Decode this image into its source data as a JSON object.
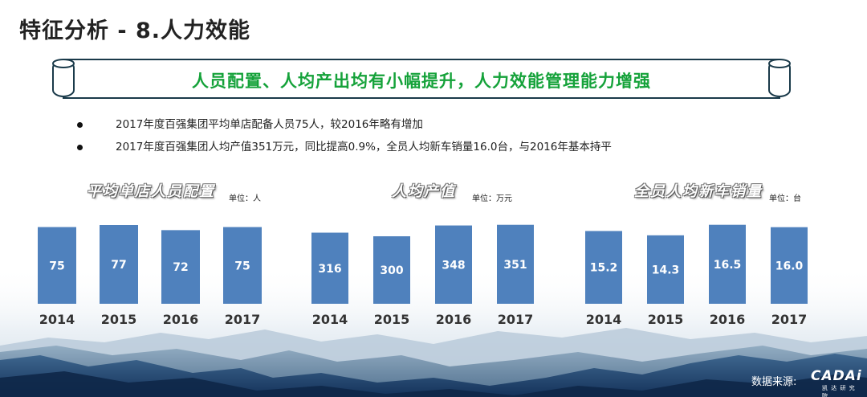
{
  "page": {
    "title": "特征分析 - 8.人力效能",
    "banner": "人员配置、人均产出均有小幅提升，人力效能管理能力增强",
    "bullets": [
      "2017年度百强集团平均单店配备人员75人，较2016年略有增加",
      "2017年度百强集团人均产值351万元，同比提高0.9%，全员人均新车销量16.0台，与2016年基本持平"
    ],
    "source_label": "数据来源:",
    "logo": {
      "word": "CADAi",
      "sub": "凯 达 研 究 院"
    }
  },
  "colors": {
    "bar": "#4f81bd",
    "banner_text": "#15a23a",
    "banner_border": "#1a3a4a"
  },
  "chart_data": [
    {
      "type": "bar",
      "title": "平均单店人员配置",
      "unit": "单位：人",
      "categories": [
        "2014",
        "2015",
        "2016",
        "2017"
      ],
      "values": [
        75,
        77,
        72,
        75
      ],
      "value_labels": [
        "75",
        "77",
        "72",
        "75"
      ]
    },
    {
      "type": "bar",
      "title": "人均产值",
      "unit": "单位：万元",
      "categories": [
        "2014",
        "2015",
        "2016",
        "2017"
      ],
      "values": [
        316,
        300,
        348,
        351
      ],
      "value_labels": [
        "316",
        "300",
        "348",
        "351"
      ]
    },
    {
      "type": "bar",
      "title": "全员人均新车销量",
      "unit": "单位：台",
      "categories": [
        "2014",
        "2015",
        "2016",
        "2017"
      ],
      "values": [
        15.2,
        14.3,
        16.5,
        16.0
      ],
      "value_labels": [
        "15.2",
        "14.3",
        "16.5",
        "16.0"
      ]
    }
  ]
}
